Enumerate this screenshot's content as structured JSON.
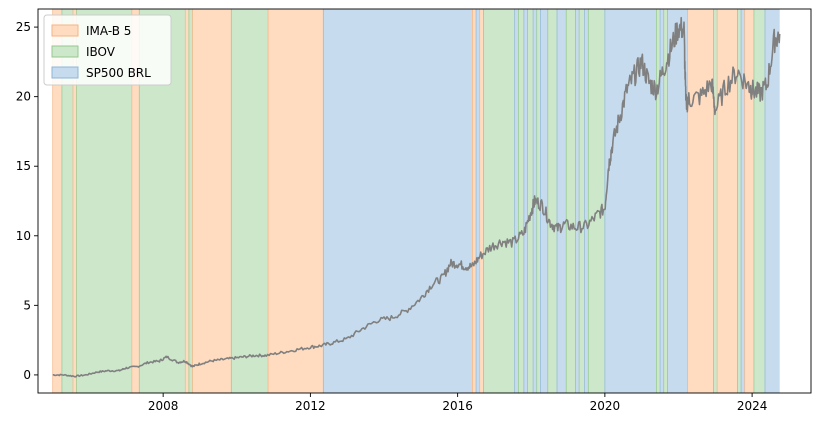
{
  "chart_data": {
    "type": "line",
    "title": "",
    "xlabel": "",
    "ylabel": "",
    "xlim": [
      2004.6,
      2025.6
    ],
    "ylim": [
      -1.3,
      26.3
    ],
    "x_ticks": [
      2008,
      2012,
      2016,
      2020,
      2024
    ],
    "y_ticks": [
      0,
      5,
      10,
      15,
      20,
      25
    ],
    "grid": false,
    "legend_position": "top-left",
    "legend": [
      {
        "key": "ima",
        "label": "IMA-B 5",
        "color": "#ffdcc0",
        "edge": "#f4b383"
      },
      {
        "key": "ibov",
        "label": "IBOV",
        "color": "#cde7cb",
        "edge": "#93c88e"
      },
      {
        "key": "sp",
        "label": "SP500 BRL",
        "color": "#c6dbed",
        "edge": "#8fb6d8"
      }
    ],
    "regime_bands": [
      {
        "start": 2005.0,
        "end": 2005.25,
        "regime": "ima"
      },
      {
        "start": 2005.25,
        "end": 2005.55,
        "regime": "ibov"
      },
      {
        "start": 2005.55,
        "end": 2005.65,
        "regime": "ima"
      },
      {
        "start": 2005.65,
        "end": 2007.15,
        "regime": "ibov"
      },
      {
        "start": 2007.15,
        "end": 2007.35,
        "regime": "ima"
      },
      {
        "start": 2007.35,
        "end": 2008.6,
        "regime": "ibov"
      },
      {
        "start": 2008.6,
        "end": 2008.7,
        "regime": "ima"
      },
      {
        "start": 2008.7,
        "end": 2008.8,
        "regime": "ibov"
      },
      {
        "start": 2008.8,
        "end": 2009.85,
        "regime": "ima"
      },
      {
        "start": 2009.85,
        "end": 2010.85,
        "regime": "ibov"
      },
      {
        "start": 2010.85,
        "end": 2012.35,
        "regime": "ima"
      },
      {
        "start": 2012.35,
        "end": 2016.4,
        "regime": "sp"
      },
      {
        "start": 2016.4,
        "end": 2016.5,
        "regime": "ima"
      },
      {
        "start": 2016.5,
        "end": 2016.6,
        "regime": "sp"
      },
      {
        "start": 2016.6,
        "end": 2016.7,
        "regime": "ima"
      },
      {
        "start": 2016.7,
        "end": 2017.55,
        "regime": "ibov"
      },
      {
        "start": 2017.55,
        "end": 2017.65,
        "regime": "sp"
      },
      {
        "start": 2017.65,
        "end": 2017.8,
        "regime": "ibov"
      },
      {
        "start": 2017.8,
        "end": 2017.9,
        "regime": "sp"
      },
      {
        "start": 2017.9,
        "end": 2018.05,
        "regime": "ibov"
      },
      {
        "start": 2018.05,
        "end": 2018.15,
        "regime": "sp"
      },
      {
        "start": 2018.15,
        "end": 2018.25,
        "regime": "ibov"
      },
      {
        "start": 2018.25,
        "end": 2018.45,
        "regime": "sp"
      },
      {
        "start": 2018.45,
        "end": 2018.7,
        "regime": "ibov"
      },
      {
        "start": 2018.7,
        "end": 2018.95,
        "regime": "sp"
      },
      {
        "start": 2018.95,
        "end": 2019.2,
        "regime": "ibov"
      },
      {
        "start": 2019.2,
        "end": 2019.3,
        "regime": "sp"
      },
      {
        "start": 2019.3,
        "end": 2019.45,
        "regime": "ibov"
      },
      {
        "start": 2019.45,
        "end": 2019.55,
        "regime": "sp"
      },
      {
        "start": 2019.55,
        "end": 2020.0,
        "regime": "ibov"
      },
      {
        "start": 2020.0,
        "end": 2021.4,
        "regime": "sp"
      },
      {
        "start": 2021.4,
        "end": 2021.5,
        "regime": "ibov"
      },
      {
        "start": 2021.5,
        "end": 2021.6,
        "regime": "sp"
      },
      {
        "start": 2021.6,
        "end": 2021.7,
        "regime": "ibov"
      },
      {
        "start": 2021.7,
        "end": 2022.25,
        "regime": "sp"
      },
      {
        "start": 2022.25,
        "end": 2022.95,
        "regime": "ima"
      },
      {
        "start": 2022.95,
        "end": 2023.05,
        "regime": "ibov"
      },
      {
        "start": 2023.05,
        "end": 2023.6,
        "regime": "ima"
      },
      {
        "start": 2023.6,
        "end": 2023.7,
        "regime": "ibov"
      },
      {
        "start": 2023.7,
        "end": 2023.8,
        "regime": "sp"
      },
      {
        "start": 2023.8,
        "end": 2024.05,
        "regime": "ima"
      },
      {
        "start": 2024.05,
        "end": 2024.35,
        "regime": "ibov"
      },
      {
        "start": 2024.35,
        "end": 2024.75,
        "regime": "sp"
      }
    ],
    "line_color": "#808080",
    "series": [
      {
        "x": [
          2005.0,
          2005.3,
          2005.6,
          2005.9,
          2006.2,
          2006.5,
          2006.8,
          2007.0,
          2007.3,
          2007.6,
          2007.9,
          2008.1,
          2008.4,
          2008.6,
          2008.8,
          2009.0,
          2009.3,
          2009.6,
          2009.9,
          2010.2,
          2010.5,
          2010.8,
          2011.2,
          2011.6,
          2012.0,
          2012.3,
          2012.6,
          2013.0,
          2013.4,
          2013.8,
          2014.2,
          2014.6,
          2015.0,
          2015.3,
          2015.6,
          2015.8,
          2016.0,
          2016.2,
          2016.4,
          2016.6,
          2016.9,
          2017.2,
          2017.5,
          2017.8,
          2018.0,
          2018.1,
          2018.3,
          2018.5,
          2018.7,
          2018.9,
          2019.2,
          2019.5,
          2019.8,
          2020.0,
          2020.1,
          2020.2,
          2020.4,
          2020.6,
          2020.8,
          2021.0,
          2021.2,
          2021.4,
          2021.6,
          2021.8,
          2022.0,
          2022.15,
          2022.2,
          2022.3,
          2022.6,
          2022.9,
          2023.0,
          2023.3,
          2023.6,
          2023.9,
          2024.0,
          2024.2,
          2024.4,
          2024.6,
          2024.75
        ],
        "values": [
          0.0,
          0.0,
          -0.1,
          0.0,
          0.2,
          0.3,
          0.3,
          0.5,
          0.6,
          0.9,
          1.0,
          1.3,
          0.9,
          1.0,
          0.6,
          0.8,
          1.0,
          1.1,
          1.2,
          1.3,
          1.4,
          1.4,
          1.6,
          1.8,
          2.0,
          2.1,
          2.3,
          2.6,
          3.3,
          3.9,
          4.1,
          4.6,
          5.5,
          6.5,
          7.0,
          8.0,
          8.0,
          7.8,
          7.8,
          8.5,
          9.2,
          9.6,
          9.5,
          10.2,
          11.8,
          12.5,
          12.2,
          11.0,
          10.5,
          10.8,
          10.6,
          10.7,
          11.5,
          12.0,
          15.0,
          16.5,
          18.5,
          20.5,
          21.5,
          22.5,
          21.0,
          20.5,
          22.0,
          23.5,
          25.0,
          24.8,
          19.5,
          19.8,
          20.0,
          21.0,
          19.0,
          20.8,
          21.8,
          20.8,
          20.5,
          20.2,
          20.8,
          24.0,
          24.5
        ]
      }
    ]
  }
}
